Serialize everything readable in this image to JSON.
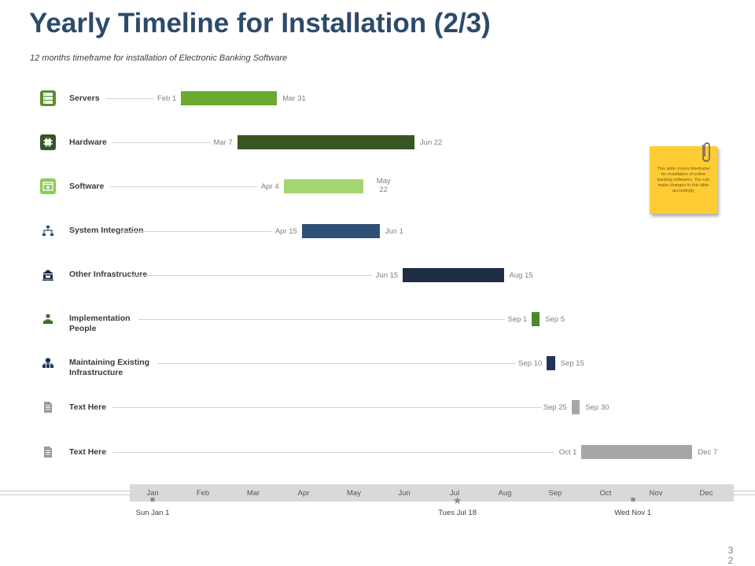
{
  "title": "Yearly Timeline for Installation (2/3)",
  "subtitle": "12 months timeframe for installation of Electronic Banking Software",
  "chart_data": {
    "type": "gantt",
    "year_axis": {
      "months": [
        "Jan",
        "Feb",
        "Mar",
        "Apr",
        "May",
        "Jun",
        "Jul",
        "Aug",
        "Sep",
        "Oct",
        "Nov",
        "Dec"
      ],
      "range_days": [
        0,
        365
      ]
    },
    "tasks": [
      {
        "label": "Servers",
        "start_label": "Feb 1",
        "end_label": "Mar 31",
        "start_day": 31,
        "end_day": 89,
        "color": "#6aaa2f",
        "icon": "server-icon"
      },
      {
        "label": "Hardware",
        "start_label": "Mar 7",
        "end_label": "Jun 22",
        "start_day": 65,
        "end_day": 172,
        "color": "#375623",
        "icon": "chip-icon"
      },
      {
        "label": "Software",
        "start_label": "Apr 4",
        "end_label": "May 22",
        "start_day": 93,
        "end_day": 141,
        "color": "#a3d66f",
        "icon": "software-icon"
      },
      {
        "label": "System Integration",
        "start_label": "Apr 15",
        "end_label": "Jun 1",
        "start_day": 104,
        "end_day": 151,
        "color": "#2f4f74",
        "icon": "network-icon"
      },
      {
        "label": "Other Infrastructure",
        "start_label": "Jun 15",
        "end_label": "Aug 15",
        "start_day": 165,
        "end_day": 226,
        "color": "#1f2d44",
        "icon": "bank-icon"
      },
      {
        "label": "Implementation People",
        "start_label": "Sep 1",
        "end_label": "Sep 5",
        "start_day": 243,
        "end_day": 247,
        "color": "#4b8a2a",
        "icon": "person-laptop-icon"
      },
      {
        "label": "Maintaining Existing Infrastructure",
        "start_label": "Sep 10",
        "end_label": "Sep 15",
        "start_day": 252,
        "end_day": 257,
        "color": "#1f3457",
        "icon": "infrastructure-icon"
      },
      {
        "label": "Text Here",
        "start_label": "Sep 25",
        "end_label": "Sep 30",
        "start_day": 267,
        "end_day": 272,
        "color": "#a6a6a6",
        "icon": "document-icon"
      },
      {
        "label": "Text Here",
        "start_label": "Oct 1",
        "end_label": "Dec 7",
        "start_day": 273,
        "end_day": 340,
        "color": "#a6a6a6",
        "icon": "document-icon"
      }
    ],
    "milestones": [
      {
        "label": "Sun Jan 1",
        "day": 0,
        "marker": "square"
      },
      {
        "label": "Tues Jul 18",
        "day": 198,
        "marker": "star"
      },
      {
        "label": "Wed Nov 1",
        "day": 304,
        "marker": "square"
      }
    ]
  },
  "sticky_note": {
    "text": "This slide covers timeframe for installation of online banking softwares. You can make changes to this slide accordingly"
  },
  "page_number": "32",
  "colors": {
    "title": "#2d4a6b",
    "green": "#6aaa2f",
    "note": "#ffcc33"
  }
}
